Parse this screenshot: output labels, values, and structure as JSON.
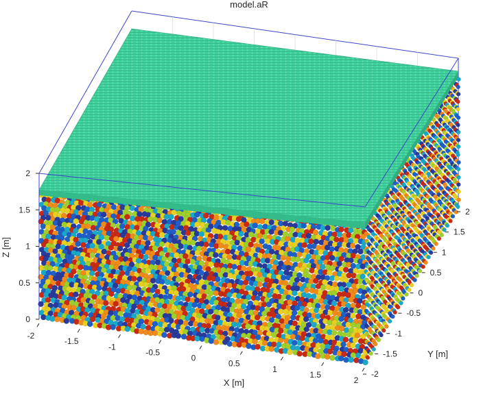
{
  "chart_data": {
    "type": "scatter",
    "title": "model.aR",
    "xlabel": "X [m]",
    "ylabel": "Y [m]",
    "zlabel": "Z [m]",
    "xlim": [
      -2,
      2
    ],
    "ylim": [
      -2,
      2
    ],
    "zlim": [
      0,
      2
    ],
    "x_ticks": [
      "-2",
      "-1.5",
      "-1",
      "-0.5",
      "0",
      "0.5",
      "1",
      "1.5",
      "2"
    ],
    "y_ticks": [
      "-2",
      "-1.5",
      "-1",
      "-0.5",
      "0",
      "0.5",
      "1",
      "1.5",
      "2"
    ],
    "z_ticks": [
      "0",
      "0.5",
      "1",
      "1.5",
      "2"
    ],
    "grid": true,
    "top_layer": {
      "z_range": [
        1.75,
        1.8
      ],
      "color": "#3ccf9a"
    },
    "particle_colors": [
      "#2a3a9a",
      "#1f5fc8",
      "#1aa8c8",
      "#9fcf2a",
      "#e8d020",
      "#f08a18",
      "#c82a14"
    ]
  }
}
